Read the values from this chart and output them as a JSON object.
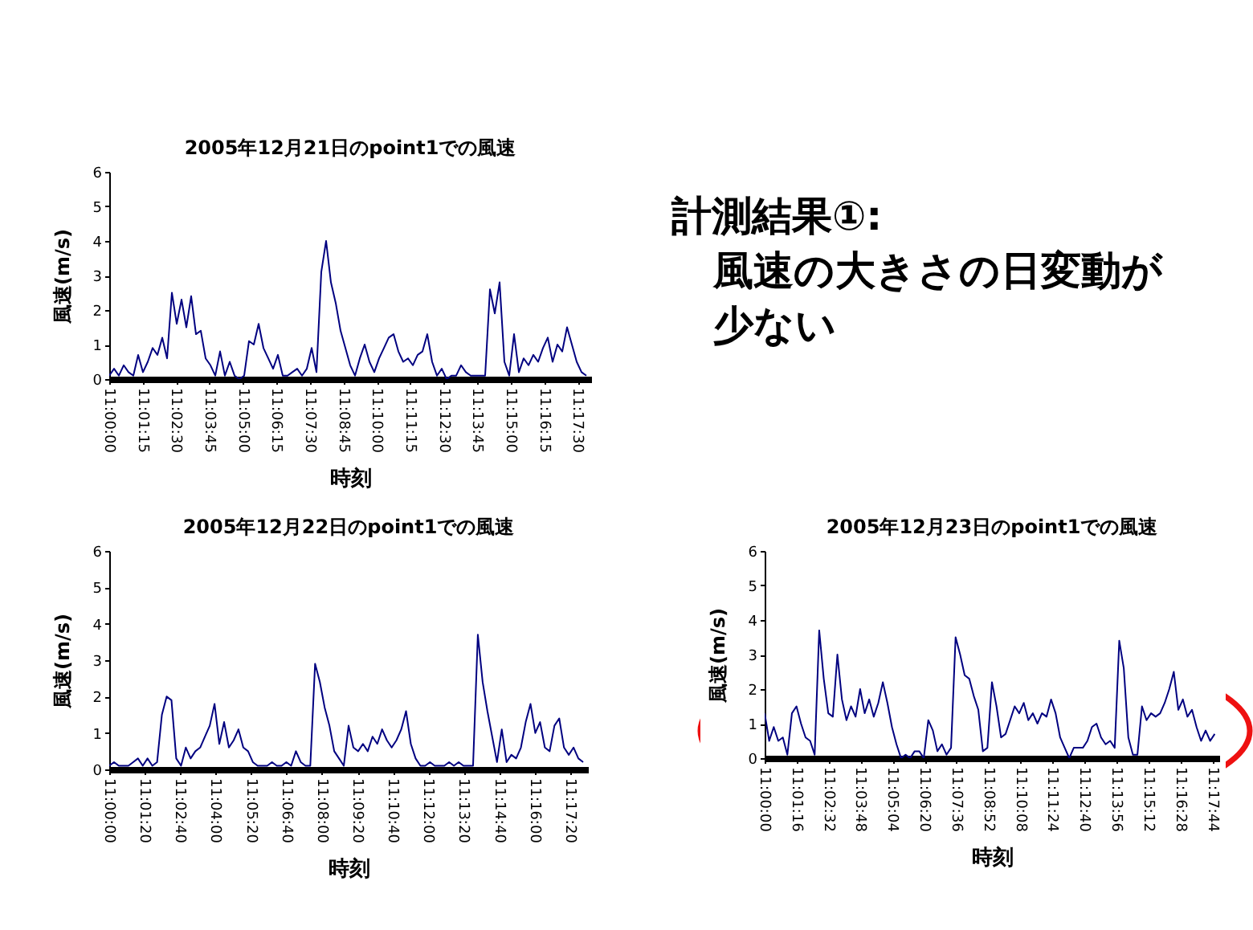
{
  "chart_data": [
    {
      "type": "line",
      "title": "2005年12月21日のpoint1での風速",
      "xlabel": "時刻",
      "ylabel": "風速(m/s)",
      "xlim": [
        11,
        11.3
      ],
      "ylim": [
        0,
        6
      ],
      "yticks": [
        0,
        1,
        2,
        3,
        4,
        5,
        6
      ],
      "grid": false,
      "xticks": [
        {
          "value": 11,
          "label": "11:00:00"
        },
        {
          "value": 11.02083,
          "label": "11:01:15"
        },
        {
          "value": 11.04167,
          "label": "11:02:30"
        },
        {
          "value": 11.0625,
          "label": "11:03:45"
        },
        {
          "value": 11.08333,
          "label": "11:05:00"
        },
        {
          "value": 11.10417,
          "label": "11:06:15"
        },
        {
          "value": 11.125,
          "label": "11:07:30"
        },
        {
          "value": 11.14583,
          "label": "11:08:45"
        },
        {
          "value": 11.16667,
          "label": "11:10:00"
        },
        {
          "value": 11.1875,
          "label": "11:11:15"
        },
        {
          "value": 11.20833,
          "label": "11:12:30"
        },
        {
          "value": 11.22917,
          "label": "11:13:45"
        },
        {
          "value": 11.25,
          "label": "11:15:00"
        },
        {
          "value": 11.27083,
          "label": "11:16:15"
        },
        {
          "value": 11.29167,
          "label": "11:17:30"
        }
      ],
      "x": [
        11,
        11.003,
        11.006,
        11.009,
        11.012,
        11.015,
        11.018,
        11.021,
        11.024,
        11.027,
        11.03,
        11.033,
        11.036,
        11.039,
        11.042,
        11.045,
        11.048,
        11.051,
        11.054,
        11.057,
        11.06,
        11.063,
        11.066,
        11.069,
        11.072,
        11.075,
        11.078,
        11.081,
        11.084,
        11.087,
        11.09,
        11.093,
        11.096,
        11.099,
        11.102,
        11.105,
        11.108,
        11.111,
        11.114,
        11.117,
        11.12,
        11.123,
        11.126,
        11.129,
        11.132,
        11.135,
        11.138,
        11.141,
        11.144,
        11.147,
        11.15,
        11.153,
        11.156,
        11.159,
        11.162,
        11.165,
        11.168,
        11.171,
        11.174,
        11.177,
        11.18,
        11.183,
        11.186,
        11.189,
        11.192,
        11.195,
        11.198,
        11.201,
        11.204,
        11.207,
        11.21,
        11.213,
        11.216,
        11.219,
        11.222,
        11.225,
        11.228,
        11.231,
        11.234,
        11.237,
        11.24,
        11.243,
        11.246,
        11.249,
        11.252,
        11.255,
        11.258,
        11.261,
        11.264,
        11.267,
        11.27,
        11.273,
        11.276,
        11.279,
        11.282,
        11.285,
        11.288,
        11.291,
        11.294,
        11.297
      ],
      "series": [
        {
          "color": "#000080",
          "values": [
            0.1,
            0.3,
            0.1,
            0.4,
            0.2,
            0.1,
            0.7,
            0.2,
            0.5,
            0.9,
            0.7,
            1.2,
            0.6,
            2.5,
            1.6,
            2.3,
            1.5,
            2.4,
            1.3,
            1.4,
            0.6,
            0.4,
            0.1,
            0.8,
            0.1,
            0.5,
            0.1,
            0.0,
            0.1,
            1.1,
            1.0,
            1.6,
            0.9,
            0.6,
            0.3,
            0.7,
            0.1,
            0.1,
            0.2,
            0.3,
            0.1,
            0.3,
            0.9,
            0.2,
            3.1,
            4.0,
            2.8,
            2.2,
            1.4,
            0.9,
            0.4,
            0.1,
            0.6,
            1.0,
            0.5,
            0.2,
            0.6,
            0.9,
            1.2,
            1.3,
            0.8,
            0.5,
            0.6,
            0.4,
            0.7,
            0.8,
            1.3,
            0.5,
            0.1,
            0.3,
            0.0,
            0.1,
            0.1,
            0.4,
            0.2,
            0.1,
            0.1,
            0.1,
            0.1,
            2.6,
            1.9,
            2.8,
            0.5,
            0.1,
            1.3,
            0.2,
            0.6,
            0.4,
            0.7,
            0.5,
            0.9,
            1.2,
            0.5,
            1.0,
            0.8,
            1.5,
            1.0,
            0.5,
            0.2,
            0.1
          ]
        }
      ]
    },
    {
      "type": "line",
      "title": "2005年12月22日のpoint1での風速",
      "xlabel": "時刻",
      "ylabel": "風速(m/s)",
      "xlim": [
        11,
        11.3
      ],
      "ylim": [
        0,
        6
      ],
      "yticks": [
        0,
        1,
        2,
        3,
        4,
        5,
        6
      ],
      "grid": false,
      "xticks": [
        {
          "value": 11,
          "label": "11:00:00"
        },
        {
          "value": 11.02222,
          "label": "11:01:20"
        },
        {
          "value": 11.04444,
          "label": "11:02:40"
        },
        {
          "value": 11.06667,
          "label": "11:04:00"
        },
        {
          "value": 11.08889,
          "label": "11:05:20"
        },
        {
          "value": 11.11111,
          "label": "11:06:40"
        },
        {
          "value": 11.13333,
          "label": "11:08:00"
        },
        {
          "value": 11.15556,
          "label": "11:09:20"
        },
        {
          "value": 11.17778,
          "label": "11:10:40"
        },
        {
          "value": 11.2,
          "label": "11:12:00"
        },
        {
          "value": 11.22222,
          "label": "11:13:20"
        },
        {
          "value": 11.24444,
          "label": "11:14:40"
        },
        {
          "value": 11.26667,
          "label": "11:16:00"
        },
        {
          "value": 11.28889,
          "label": "11:17:20"
        }
      ],
      "x": [
        11,
        11.003,
        11.006,
        11.009,
        11.012,
        11.015,
        11.018,
        11.021,
        11.024,
        11.027,
        11.03,
        11.033,
        11.036,
        11.039,
        11.042,
        11.045,
        11.048,
        11.051,
        11.054,
        11.057,
        11.06,
        11.063,
        11.066,
        11.069,
        11.072,
        11.075,
        11.078,
        11.081,
        11.084,
        11.087,
        11.09,
        11.093,
        11.096,
        11.099,
        11.102,
        11.105,
        11.108,
        11.111,
        11.114,
        11.117,
        11.12,
        11.123,
        11.126,
        11.129,
        11.132,
        11.135,
        11.138,
        11.141,
        11.144,
        11.147,
        11.15,
        11.153,
        11.156,
        11.159,
        11.162,
        11.165,
        11.168,
        11.171,
        11.174,
        11.177,
        11.18,
        11.183,
        11.186,
        11.189,
        11.192,
        11.195,
        11.198,
        11.201,
        11.204,
        11.207,
        11.21,
        11.213,
        11.216,
        11.219,
        11.222,
        11.225,
        11.228,
        11.231,
        11.234,
        11.237,
        11.24,
        11.243,
        11.246,
        11.249,
        11.252,
        11.255,
        11.258,
        11.261,
        11.264,
        11.267,
        11.27,
        11.273,
        11.276,
        11.279,
        11.282,
        11.285,
        11.288,
        11.291,
        11.294,
        11.297
      ],
      "series": [
        {
          "color": "#000080",
          "values": [
            0.1,
            0.2,
            0.1,
            0.1,
            0.1,
            0.2,
            0.3,
            0.1,
            0.3,
            0.1,
            0.2,
            1.5,
            2.0,
            1.9,
            0.3,
            0.1,
            0.6,
            0.3,
            0.5,
            0.6,
            0.9,
            1.2,
            1.8,
            0.7,
            1.3,
            0.6,
            0.8,
            1.1,
            0.6,
            0.5,
            0.2,
            0.1,
            0.1,
            0.1,
            0.2,
            0.1,
            0.1,
            0.2,
            0.1,
            0.5,
            0.2,
            0.1,
            0.1,
            2.9,
            2.4,
            1.7,
            1.2,
            0.5,
            0.3,
            0.1,
            1.2,
            0.6,
            0.5,
            0.7,
            0.5,
            0.9,
            0.7,
            1.1,
            0.8,
            0.6,
            0.8,
            1.1,
            1.6,
            0.7,
            0.3,
            0.1,
            0.1,
            0.2,
            0.1,
            0.1,
            0.1,
            0.2,
            0.1,
            0.2,
            0.1,
            0.1,
            0.1,
            3.7,
            2.4,
            1.6,
            0.9,
            0.2,
            1.1,
            0.2,
            0.4,
            0.3,
            0.6,
            1.3,
            1.8,
            1.0,
            1.3,
            0.6,
            0.5,
            1.2,
            1.4,
            0.6,
            0.4,
            0.6,
            0.3,
            0.2
          ]
        }
      ]
    },
    {
      "type": "line",
      "title": "2005年12月23日のpoint1での風速",
      "xlabel": "時刻",
      "ylabel": "風速(m/s)",
      "xlim": [
        11,
        11.3
      ],
      "ylim": [
        0,
        6
      ],
      "yticks": [
        0,
        1,
        2,
        3,
        4,
        5,
        6
      ],
      "grid": false,
      "xticks": [
        {
          "value": 11,
          "label": "11:00:00"
        },
        {
          "value": 11.02111,
          "label": "11:01:16"
        },
        {
          "value": 11.04222,
          "label": "11:02:32"
        },
        {
          "value": 11.06333,
          "label": "11:03:48"
        },
        {
          "value": 11.08444,
          "label": "11:05:04"
        },
        {
          "value": 11.10556,
          "label": "11:06:20"
        },
        {
          "value": 11.12667,
          "label": "11:07:36"
        },
        {
          "value": 11.14778,
          "label": "11:08:52"
        },
        {
          "value": 11.16889,
          "label": "11:10:08"
        },
        {
          "value": 11.19,
          "label": "11:11:24"
        },
        {
          "value": 11.21111,
          "label": "11:12:40"
        },
        {
          "value": 11.23222,
          "label": "11:13:56"
        },
        {
          "value": 11.25333,
          "label": "11:15:12"
        },
        {
          "value": 11.27444,
          "label": "11:16:28"
        },
        {
          "value": 11.29556,
          "label": "11:17:44"
        }
      ],
      "x": [
        11,
        11.003,
        11.006,
        11.009,
        11.012,
        11.015,
        11.018,
        11.021,
        11.024,
        11.027,
        11.03,
        11.033,
        11.036,
        11.039,
        11.042,
        11.045,
        11.048,
        11.051,
        11.054,
        11.057,
        11.06,
        11.063,
        11.066,
        11.069,
        11.072,
        11.075,
        11.078,
        11.081,
        11.084,
        11.087,
        11.09,
        11.093,
        11.096,
        11.099,
        11.102,
        11.105,
        11.108,
        11.111,
        11.114,
        11.117,
        11.12,
        11.123,
        11.126,
        11.129,
        11.132,
        11.135,
        11.138,
        11.141,
        11.144,
        11.147,
        11.15,
        11.153,
        11.156,
        11.159,
        11.162,
        11.165,
        11.168,
        11.171,
        11.174,
        11.177,
        11.18,
        11.183,
        11.186,
        11.189,
        11.192,
        11.195,
        11.198,
        11.201,
        11.204,
        11.207,
        11.21,
        11.213,
        11.216,
        11.219,
        11.222,
        11.225,
        11.228,
        11.231,
        11.234,
        11.237,
        11.24,
        11.243,
        11.246,
        11.249,
        11.252,
        11.255,
        11.258,
        11.261,
        11.264,
        11.267,
        11.27,
        11.273,
        11.276,
        11.279,
        11.282,
        11.285,
        11.288,
        11.291,
        11.294,
        11.297
      ],
      "series": [
        {
          "color": "#000080",
          "values": [
            1.3,
            0.5,
            0.9,
            0.5,
            0.6,
            0.1,
            1.3,
            1.5,
            1.0,
            0.6,
            0.5,
            0.1,
            3.7,
            2.3,
            1.3,
            1.2,
            3.0,
            1.7,
            1.1,
            1.5,
            1.2,
            2.0,
            1.3,
            1.7,
            1.2,
            1.6,
            2.2,
            1.6,
            0.9,
            0.4,
            0.0,
            0.1,
            0.0,
            0.2,
            0.2,
            0.0,
            1.1,
            0.8,
            0.2,
            0.4,
            0.1,
            0.3,
            3.5,
            3.0,
            2.4,
            2.3,
            1.8,
            1.4,
            0.2,
            0.3,
            2.2,
            1.5,
            0.6,
            0.7,
            1.1,
            1.5,
            1.3,
            1.6,
            1.1,
            1.3,
            1.0,
            1.3,
            1.2,
            1.7,
            1.3,
            0.6,
            0.3,
            0.0,
            0.3,
            0.3,
            0.3,
            0.5,
            0.9,
            1.0,
            0.6,
            0.4,
            0.5,
            0.3,
            3.4,
            2.6,
            0.6,
            0.1,
            0.1,
            1.5,
            1.1,
            1.3,
            1.2,
            1.3,
            1.6,
            2.0,
            2.5,
            1.4,
            1.7,
            1.2,
            1.4,
            0.9,
            0.5,
            0.8,
            0.5,
            0.7
          ]
        }
      ]
    },
    {
      "type": "other",
      "annotations": [
        "計測結果①:",
        "風速の大きさの日変動が",
        "少ない"
      ]
    }
  ]
}
